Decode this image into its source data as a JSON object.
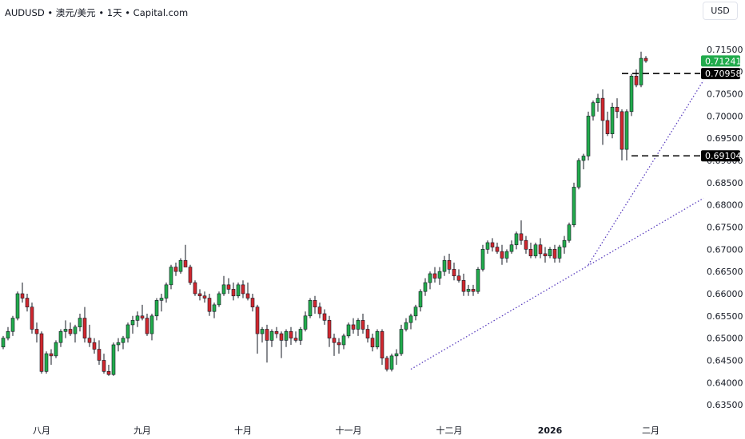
{
  "header": {
    "title": "AUDUSD • 澳元/美元 • 1天 • Capital.com",
    "currency_button": "USD"
  },
  "chart_data": {
    "type": "candlestick",
    "title": "AUDUSD • 澳元/美元 • 1天 • Capital.com",
    "ylim": [
      0.6325,
      0.7175
    ],
    "y_ticks": [
      "0.71500",
      "0.71000",
      "0.70500",
      "0.70000",
      "0.69500",
      "0.69000",
      "0.68500",
      "0.68000",
      "0.67500",
      "0.67000",
      "0.66500",
      "0.66000",
      "0.65500",
      "0.65000",
      "0.64500",
      "0.64000",
      "0.63500"
    ],
    "x_ticks": [
      {
        "label": "八月",
        "index": 8,
        "bold": false
      },
      {
        "label": "九月",
        "index": 29,
        "bold": false
      },
      {
        "label": "十月",
        "index": 50,
        "bold": false
      },
      {
        "label": "十一月",
        "index": 72,
        "bold": false
      },
      {
        "label": "十二月",
        "index": 93,
        "bold": false
      },
      {
        "label": "2026",
        "index": 114,
        "bold": true
      },
      {
        "label": "二月",
        "index": 135,
        "bold": false
      }
    ],
    "price_tags": [
      {
        "label": "0.71241",
        "value": 0.71241,
        "color": "#22ab4c",
        "text_color": "#ffffff"
      },
      {
        "label": "0.70958",
        "value": 0.70958,
        "color": "#000000",
        "text_color": "#ffffff"
      },
      {
        "label": "0.69104",
        "value": 0.69104,
        "color": "#000000",
        "text_color": "#ffffff"
      }
    ],
    "up_color": "#22ab4c",
    "down_color": "#d0272e",
    "candles": [
      [
        0.648,
        0.6505,
        0.6475,
        0.65
      ],
      [
        0.65,
        0.6525,
        0.6495,
        0.6515
      ],
      [
        0.6515,
        0.655,
        0.6505,
        0.6545
      ],
      [
        0.6545,
        0.6605,
        0.654,
        0.66
      ],
      [
        0.66,
        0.6625,
        0.658,
        0.659
      ],
      [
        0.659,
        0.66,
        0.656,
        0.657
      ],
      [
        0.657,
        0.658,
        0.651,
        0.652
      ],
      [
        0.652,
        0.6535,
        0.649,
        0.651
      ],
      [
        0.651,
        0.6515,
        0.642,
        0.6425
      ],
      [
        0.6425,
        0.647,
        0.642,
        0.6465
      ],
      [
        0.6465,
        0.6475,
        0.644,
        0.646
      ],
      [
        0.646,
        0.6495,
        0.6455,
        0.649
      ],
      [
        0.649,
        0.652,
        0.648,
        0.6515
      ],
      [
        0.6515,
        0.654,
        0.65,
        0.652
      ],
      [
        0.652,
        0.6535,
        0.6505,
        0.651
      ],
      [
        0.651,
        0.653,
        0.649,
        0.6525
      ],
      [
        0.6525,
        0.6555,
        0.6515,
        0.6545
      ],
      [
        0.6545,
        0.657,
        0.649,
        0.65
      ],
      [
        0.65,
        0.653,
        0.648,
        0.649
      ],
      [
        0.649,
        0.65,
        0.6465,
        0.6475
      ],
      [
        0.6475,
        0.6495,
        0.644,
        0.645
      ],
      [
        0.645,
        0.6465,
        0.642,
        0.6425
      ],
      [
        0.6425,
        0.644,
        0.6415,
        0.6418
      ],
      [
        0.6418,
        0.649,
        0.6415,
        0.6485
      ],
      [
        0.6485,
        0.65,
        0.647,
        0.649
      ],
      [
        0.649,
        0.6505,
        0.6475,
        0.65
      ],
      [
        0.65,
        0.6535,
        0.649,
        0.653
      ],
      [
        0.653,
        0.655,
        0.651,
        0.654
      ],
      [
        0.654,
        0.656,
        0.6525,
        0.655
      ],
      [
        0.655,
        0.6575,
        0.654,
        0.6545
      ],
      [
        0.6545,
        0.6555,
        0.6505,
        0.651
      ],
      [
        0.651,
        0.6555,
        0.6495,
        0.655
      ],
      [
        0.655,
        0.659,
        0.654,
        0.6585
      ],
      [
        0.6585,
        0.66,
        0.656,
        0.659
      ],
      [
        0.659,
        0.6625,
        0.658,
        0.662
      ],
      [
        0.662,
        0.6665,
        0.661,
        0.666
      ],
      [
        0.666,
        0.667,
        0.664,
        0.665
      ],
      [
        0.665,
        0.668,
        0.6645,
        0.6675
      ],
      [
        0.6675,
        0.671,
        0.666,
        0.666
      ],
      [
        0.666,
        0.6665,
        0.662,
        0.6625
      ],
      [
        0.6625,
        0.663,
        0.6595,
        0.66
      ],
      [
        0.66,
        0.661,
        0.6585,
        0.6595
      ],
      [
        0.6595,
        0.6605,
        0.658,
        0.659
      ],
      [
        0.659,
        0.66,
        0.655,
        0.656
      ],
      [
        0.656,
        0.658,
        0.6545,
        0.6575
      ],
      [
        0.6575,
        0.6605,
        0.657,
        0.66
      ],
      [
        0.66,
        0.664,
        0.6595,
        0.662
      ],
      [
        0.662,
        0.6635,
        0.66,
        0.661
      ],
      [
        0.661,
        0.6625,
        0.6585,
        0.6595
      ],
      [
        0.6595,
        0.6625,
        0.659,
        0.662
      ],
      [
        0.662,
        0.663,
        0.659,
        0.66
      ],
      [
        0.66,
        0.6625,
        0.6585,
        0.659
      ],
      [
        0.659,
        0.66,
        0.656,
        0.657
      ],
      [
        0.657,
        0.6575,
        0.6465,
        0.651
      ],
      [
        0.651,
        0.6525,
        0.649,
        0.652
      ],
      [
        0.652,
        0.653,
        0.6445,
        0.6495
      ],
      [
        0.6495,
        0.652,
        0.648,
        0.6515
      ],
      [
        0.6515,
        0.6525,
        0.65,
        0.651
      ],
      [
        0.651,
        0.6515,
        0.6455,
        0.6495
      ],
      [
        0.6495,
        0.652,
        0.648,
        0.6515
      ],
      [
        0.6515,
        0.6525,
        0.6485,
        0.65
      ],
      [
        0.65,
        0.6515,
        0.649,
        0.6495
      ],
      [
        0.6495,
        0.6525,
        0.6485,
        0.652
      ],
      [
        0.652,
        0.656,
        0.6515,
        0.655
      ],
      [
        0.655,
        0.659,
        0.6545,
        0.6585
      ],
      [
        0.6585,
        0.6595,
        0.6555,
        0.657
      ],
      [
        0.657,
        0.658,
        0.6545,
        0.6555
      ],
      [
        0.6555,
        0.6565,
        0.653,
        0.654
      ],
      [
        0.654,
        0.655,
        0.648,
        0.65
      ],
      [
        0.65,
        0.651,
        0.646,
        0.649
      ],
      [
        0.649,
        0.65,
        0.6465,
        0.6485
      ],
      [
        0.6485,
        0.651,
        0.6475,
        0.6505
      ],
      [
        0.6505,
        0.6535,
        0.65,
        0.653
      ],
      [
        0.653,
        0.6545,
        0.651,
        0.652
      ],
      [
        0.652,
        0.6545,
        0.6505,
        0.654
      ],
      [
        0.654,
        0.6555,
        0.651,
        0.652
      ],
      [
        0.652,
        0.653,
        0.649,
        0.65
      ],
      [
        0.65,
        0.651,
        0.647,
        0.648
      ],
      [
        0.648,
        0.652,
        0.6475,
        0.6515
      ],
      [
        0.6515,
        0.652,
        0.644,
        0.6455
      ],
      [
        0.6455,
        0.646,
        0.6425,
        0.643
      ],
      [
        0.643,
        0.6465,
        0.6425,
        0.646
      ],
      [
        0.646,
        0.6475,
        0.644,
        0.6465
      ],
      [
        0.6465,
        0.653,
        0.646,
        0.652
      ],
      [
        0.652,
        0.6545,
        0.6515,
        0.6535
      ],
      [
        0.6535,
        0.6555,
        0.652,
        0.655
      ],
      [
        0.655,
        0.6575,
        0.654,
        0.657
      ],
      [
        0.657,
        0.661,
        0.656,
        0.6605
      ],
      [
        0.6605,
        0.6635,
        0.6595,
        0.6625
      ],
      [
        0.6625,
        0.665,
        0.661,
        0.6645
      ],
      [
        0.6645,
        0.666,
        0.6625,
        0.6635
      ],
      [
        0.6635,
        0.666,
        0.662,
        0.665
      ],
      [
        0.665,
        0.6685,
        0.664,
        0.6675
      ],
      [
        0.6675,
        0.669,
        0.6645,
        0.6655
      ],
      [
        0.6655,
        0.667,
        0.663,
        0.664
      ],
      [
        0.664,
        0.6655,
        0.6625,
        0.663
      ],
      [
        0.663,
        0.6645,
        0.6595,
        0.6605
      ],
      [
        0.6605,
        0.662,
        0.6595,
        0.661
      ],
      [
        0.661,
        0.662,
        0.6595,
        0.6605
      ],
      [
        0.6605,
        0.666,
        0.66,
        0.6655
      ],
      [
        0.6655,
        0.671,
        0.665,
        0.67
      ],
      [
        0.67,
        0.672,
        0.669,
        0.6715
      ],
      [
        0.6715,
        0.6725,
        0.6695,
        0.6705
      ],
      [
        0.6705,
        0.6715,
        0.669,
        0.6695
      ],
      [
        0.6695,
        0.671,
        0.6665,
        0.668
      ],
      [
        0.668,
        0.67,
        0.667,
        0.6695
      ],
      [
        0.6695,
        0.672,
        0.669,
        0.671
      ],
      [
        0.671,
        0.674,
        0.67,
        0.6735
      ],
      [
        0.6735,
        0.6765,
        0.671,
        0.672
      ],
      [
        0.672,
        0.673,
        0.669,
        0.67
      ],
      [
        0.67,
        0.6715,
        0.668,
        0.6685
      ],
      [
        0.6685,
        0.6715,
        0.668,
        0.671
      ],
      [
        0.671,
        0.6725,
        0.668,
        0.669
      ],
      [
        0.669,
        0.6705,
        0.667,
        0.6685
      ],
      [
        0.6685,
        0.6705,
        0.668,
        0.67
      ],
      [
        0.67,
        0.671,
        0.667,
        0.668
      ],
      [
        0.668,
        0.671,
        0.667,
        0.6705
      ],
      [
        0.6705,
        0.673,
        0.669,
        0.672
      ],
      [
        0.672,
        0.676,
        0.6715,
        0.6755
      ],
      [
        0.6755,
        0.685,
        0.675,
        0.684
      ],
      [
        0.684,
        0.6905,
        0.6835,
        0.69
      ],
      [
        0.69,
        0.6915,
        0.688,
        0.691
      ],
      [
        0.691,
        0.701,
        0.69,
        0.7
      ],
      [
        0.7,
        0.7035,
        0.699,
        0.703
      ],
      [
        0.703,
        0.705,
        0.701,
        0.704
      ],
      [
        0.704,
        0.706,
        0.6935,
        0.699
      ],
      [
        0.699,
        0.701,
        0.6955,
        0.696
      ],
      [
        0.696,
        0.703,
        0.695,
        0.702
      ],
      [
        0.702,
        0.704,
        0.6995,
        0.701
      ],
      [
        0.701,
        0.7015,
        0.69,
        0.6925
      ],
      [
        0.6925,
        0.7015,
        0.69,
        0.701
      ],
      [
        0.701,
        0.7095,
        0.7,
        0.709
      ],
      [
        0.709,
        0.7105,
        0.7065,
        0.707
      ],
      [
        0.707,
        0.7145,
        0.7065,
        0.713
      ],
      [
        0.713,
        0.7135,
        0.712,
        0.71241
      ]
    ],
    "trendlines": [
      {
        "from": [
          85,
          0.643
        ],
        "to": [
          146,
          0.6815
        ],
        "style": "dotted",
        "color": "#5b3fbf"
      },
      {
        "from": [
          122,
          0.6665
        ],
        "to": [
          146,
          0.708
        ],
        "style": "dotted",
        "color": "#5b3fbf"
      }
    ],
    "levels": [
      {
        "value": 0.70958,
        "from_index": 129,
        "style": "dashed",
        "color": "#000000"
      },
      {
        "value": 0.69104,
        "from_index": 131,
        "style": "dashed",
        "color": "#000000"
      }
    ],
    "grid": false,
    "legend": "none"
  }
}
